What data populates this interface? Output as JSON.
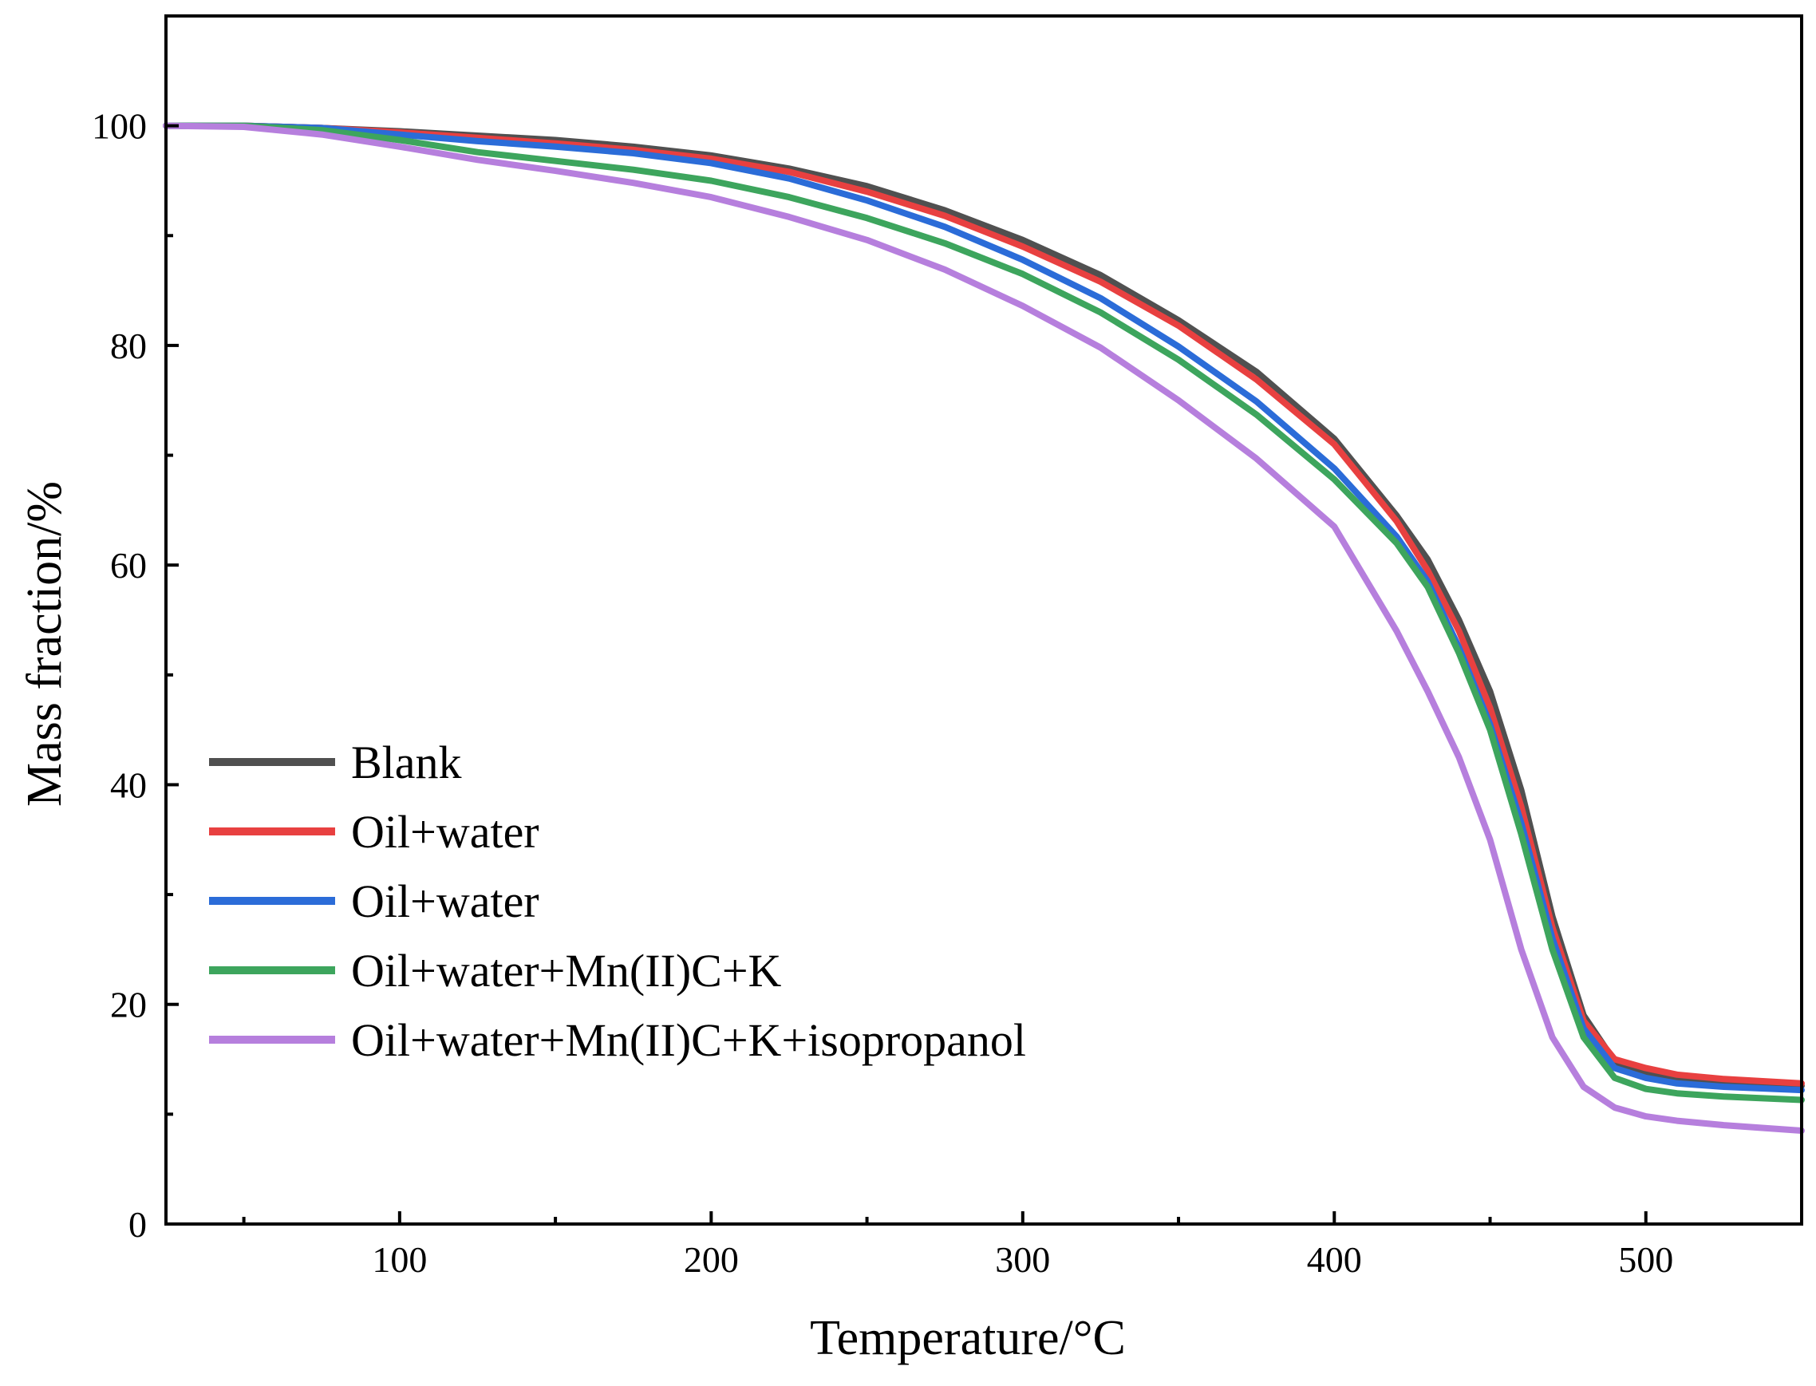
{
  "chart_data": {
    "type": "line",
    "title": "",
    "xlabel": "Temperature/°C",
    "ylabel": "Mass fraction/%",
    "xlim": [
      25,
      550
    ],
    "ylim": [
      0,
      110
    ],
    "x_major_ticks": [
      100,
      200,
      300,
      400,
      500
    ],
    "x_minor_ticks": [
      50,
      150,
      250,
      350,
      450
    ],
    "y_major_ticks": [
      0,
      20,
      40,
      60,
      80,
      100
    ],
    "y_minor_ticks": [
      10,
      30,
      50,
      70,
      90
    ],
    "x_tick_labels": [
      "100",
      "200",
      "300",
      "400",
      "500"
    ],
    "y_tick_labels": [
      "0",
      "20",
      "40",
      "60",
      "80",
      "100"
    ],
    "legend_position": "bottom-left",
    "series": [
      {
        "name": "Blank",
        "color": "#505050",
        "points": [
          [
            25,
            100
          ],
          [
            50,
            100
          ],
          [
            75,
            99.8
          ],
          [
            100,
            99.5
          ],
          [
            125,
            99.1
          ],
          [
            150,
            98.7
          ],
          [
            175,
            98.1
          ],
          [
            200,
            97.3
          ],
          [
            225,
            96.1
          ],
          [
            250,
            94.5
          ],
          [
            275,
            92.3
          ],
          [
            300,
            89.6
          ],
          [
            325,
            86.4
          ],
          [
            350,
            82.3
          ],
          [
            375,
            77.6
          ],
          [
            400,
            71.5
          ],
          [
            420,
            64.5
          ],
          [
            430,
            60.5
          ],
          [
            440,
            55
          ],
          [
            450,
            48.5
          ],
          [
            460,
            39.5
          ],
          [
            470,
            28
          ],
          [
            480,
            19
          ],
          [
            490,
            14.8
          ],
          [
            500,
            13.8
          ],
          [
            510,
            13.2
          ],
          [
            525,
            12.9
          ],
          [
            550,
            12.6
          ]
        ]
      },
      {
        "name": "Oil+water",
        "color": "#e84040",
        "points": [
          [
            25,
            100
          ],
          [
            50,
            100
          ],
          [
            75,
            99.8
          ],
          [
            100,
            99.4
          ],
          [
            125,
            98.9
          ],
          [
            150,
            98.4
          ],
          [
            175,
            97.8
          ],
          [
            200,
            97
          ],
          [
            225,
            95.8
          ],
          [
            250,
            94
          ],
          [
            275,
            91.8
          ],
          [
            300,
            89
          ],
          [
            325,
            85.8
          ],
          [
            350,
            81.8
          ],
          [
            375,
            76.9
          ],
          [
            400,
            71
          ],
          [
            420,
            64
          ],
          [
            430,
            59.5
          ],
          [
            440,
            54
          ],
          [
            450,
            47
          ],
          [
            460,
            38
          ],
          [
            470,
            27
          ],
          [
            480,
            18.5
          ],
          [
            490,
            15
          ],
          [
            500,
            14.2
          ],
          [
            510,
            13.6
          ],
          [
            525,
            13.2
          ],
          [
            550,
            12.8
          ]
        ]
      },
      {
        "name": "Oil+water",
        "color": "#2b6cd8",
        "points": [
          [
            25,
            100
          ],
          [
            50,
            100
          ],
          [
            75,
            99.8
          ],
          [
            100,
            99.2
          ],
          [
            125,
            98.6
          ],
          [
            150,
            98.1
          ],
          [
            175,
            97.5
          ],
          [
            200,
            96.6
          ],
          [
            225,
            95.2
          ],
          [
            250,
            93.2
          ],
          [
            275,
            90.8
          ],
          [
            300,
            87.8
          ],
          [
            325,
            84.3
          ],
          [
            350,
            79.9
          ],
          [
            375,
            74.9
          ],
          [
            400,
            68.8
          ],
          [
            420,
            62.6
          ],
          [
            430,
            58.5
          ],
          [
            440,
            52.5
          ],
          [
            450,
            45.5
          ],
          [
            460,
            36.5
          ],
          [
            470,
            26
          ],
          [
            480,
            17.8
          ],
          [
            490,
            14.2
          ],
          [
            500,
            13.3
          ],
          [
            510,
            12.8
          ],
          [
            525,
            12.5
          ],
          [
            550,
            12.2
          ]
        ]
      },
      {
        "name": "Oil+water+Mn(II)C+K",
        "color": "#3da55d",
        "points": [
          [
            25,
            100
          ],
          [
            50,
            100
          ],
          [
            75,
            99.6
          ],
          [
            100,
            98.7
          ],
          [
            125,
            97.6
          ],
          [
            150,
            96.8
          ],
          [
            175,
            96
          ],
          [
            200,
            95
          ],
          [
            225,
            93.5
          ],
          [
            250,
            91.6
          ],
          [
            275,
            89.3
          ],
          [
            300,
            86.5
          ],
          [
            325,
            83
          ],
          [
            350,
            78.7
          ],
          [
            375,
            73.7
          ],
          [
            400,
            67.8
          ],
          [
            420,
            62
          ],
          [
            430,
            58
          ],
          [
            440,
            52
          ],
          [
            450,
            45
          ],
          [
            460,
            35.5
          ],
          [
            470,
            25
          ],
          [
            480,
            17
          ],
          [
            490,
            13.3
          ],
          [
            500,
            12.3
          ],
          [
            510,
            11.9
          ],
          [
            525,
            11.6
          ],
          [
            550,
            11.3
          ]
        ]
      },
      {
        "name": "Oil+water+Mn(II)C+K+isopropanol",
        "color": "#b67fdd",
        "points": [
          [
            25,
            100
          ],
          [
            50,
            99.9
          ],
          [
            75,
            99.2
          ],
          [
            100,
            98.1
          ],
          [
            125,
            96.9
          ],
          [
            150,
            95.9
          ],
          [
            175,
            94.8
          ],
          [
            200,
            93.5
          ],
          [
            225,
            91.7
          ],
          [
            250,
            89.6
          ],
          [
            275,
            86.9
          ],
          [
            300,
            83.6
          ],
          [
            325,
            79.8
          ],
          [
            350,
            75
          ],
          [
            375,
            69.7
          ],
          [
            400,
            63.5
          ],
          [
            420,
            54
          ],
          [
            430,
            48.5
          ],
          [
            440,
            42.5
          ],
          [
            450,
            35
          ],
          [
            460,
            25
          ],
          [
            470,
            17
          ],
          [
            480,
            12.5
          ],
          [
            490,
            10.6
          ],
          [
            500,
            9.8
          ],
          [
            510,
            9.4
          ],
          [
            525,
            9
          ],
          [
            550,
            8.5
          ]
        ]
      }
    ]
  }
}
